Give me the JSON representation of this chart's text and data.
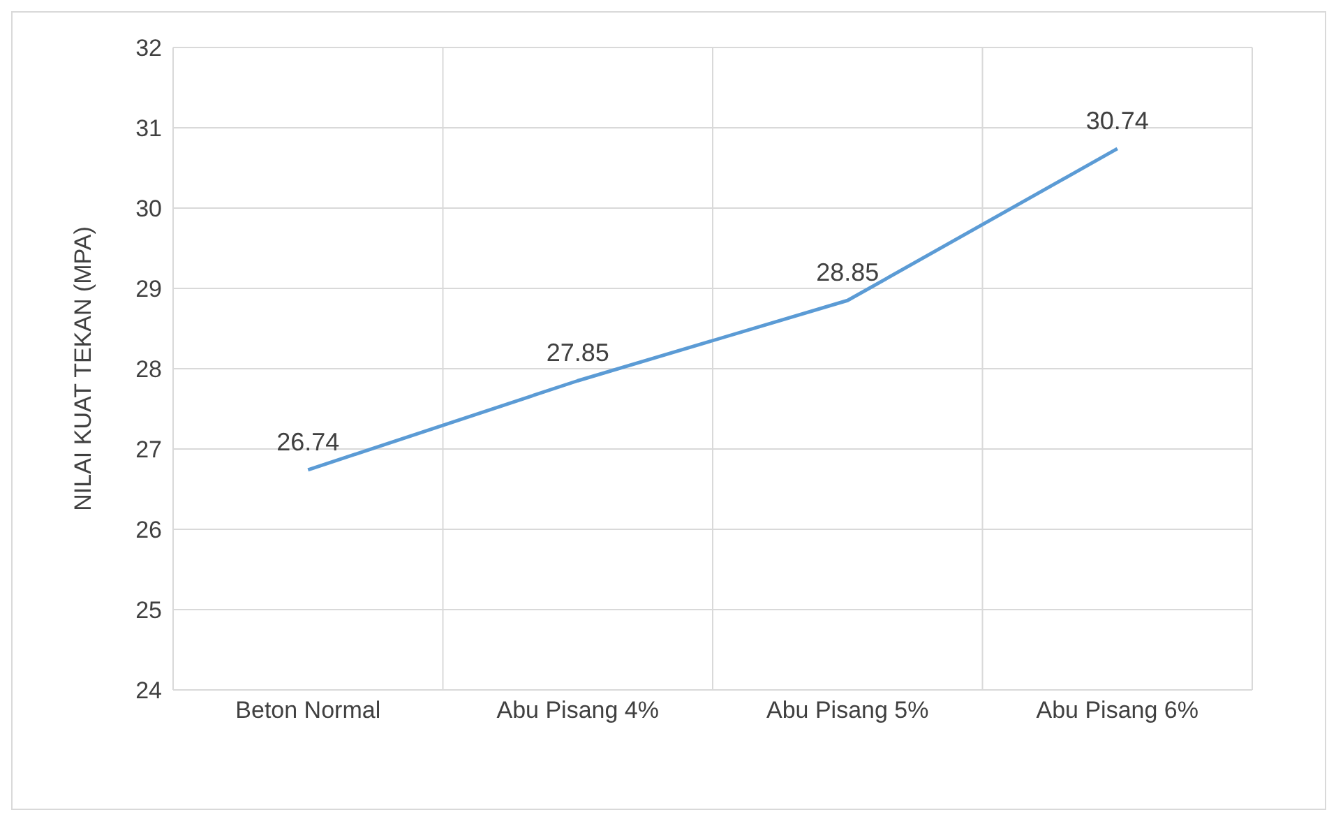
{
  "chart_data": {
    "type": "line",
    "ylabel": "NILAI KUAT TEKAN (MPA)",
    "categories": [
      "Beton Normal",
      "Abu Pisang 4%",
      "Abu Pisang 5%",
      "Abu Pisang 6%"
    ],
    "series": [
      {
        "color": "#5b9bd5",
        "values": [
          26.74,
          27.85,
          28.85,
          30.74
        ]
      }
    ],
    "ylim": [
      24,
      32
    ],
    "yticks": [
      24,
      25,
      26,
      27,
      28,
      29,
      30,
      31,
      32
    ],
    "grid": true,
    "data_labels": true,
    "marker": "none",
    "line_style": "solid"
  }
}
